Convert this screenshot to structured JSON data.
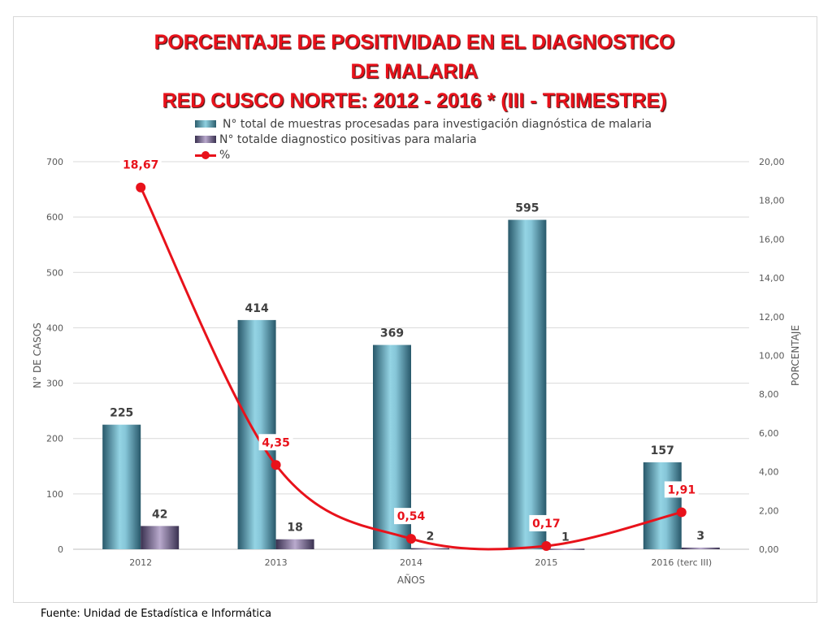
{
  "chart_data": {
    "type": "bar",
    "title_lines": [
      "PORCENTAJE DE POSITIVIDAD EN EL DIAGNOSTICO",
      "DE MALARIA",
      "RED CUSCO NORTE: 2012 - 2016 * (III - TRIMESTRE)"
    ],
    "categories": [
      "2012",
      "2013",
      "2014",
      "2015",
      "2016 (terc III)"
    ],
    "series": [
      {
        "name": "N° total de muestras procesadas para investigación diagnóstica de malaria",
        "type": "bar",
        "axis": "left",
        "values": [
          225,
          414,
          369,
          595,
          157
        ],
        "labels": [
          "225",
          "414",
          "369",
          "595",
          "157"
        ],
        "color": "#8fd0e0"
      },
      {
        "name": "N° totalde diagnostico positivas para malaria",
        "type": "bar",
        "axis": "left",
        "values": [
          42,
          18,
          2,
          1,
          3
        ],
        "labels": [
          "42",
          "18",
          "2",
          "1",
          "3"
        ],
        "color": "#b8a8cc"
      },
      {
        "name": "%",
        "type": "line",
        "axis": "right",
        "values": [
          18.67,
          4.35,
          0.54,
          0.17,
          1.91
        ],
        "labels": [
          "18,67",
          "4,35",
          "0,54",
          "0,17",
          "1,91"
        ],
        "color": "#e8121b"
      }
    ],
    "xlabel": "AÑOS",
    "ylabel": "N° DE CASOS",
    "y2label": "PORCENTAJE",
    "ylim": [
      0,
      700
    ],
    "y2lim": [
      0,
      20
    ],
    "yticks": [
      "0",
      "100",
      "200",
      "300",
      "400",
      "500",
      "600",
      "700"
    ],
    "y2ticks": [
      "0,00",
      "2,00",
      "4,00",
      "6,00",
      "8,00",
      "10,00",
      "12,00",
      "14,00",
      "16,00",
      "18,00",
      "20,00"
    ],
    "grid": true,
    "legend": "top-center"
  },
  "source": "Fuente: Unidad de Estadística e Informática"
}
